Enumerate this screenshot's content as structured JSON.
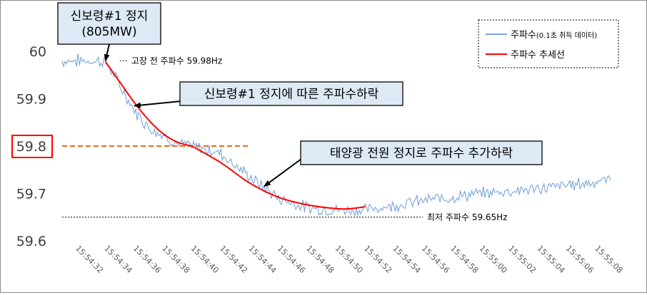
{
  "chart_data": {
    "type": "line",
    "title": "",
    "xlabel": "",
    "ylabel": "",
    "ylim": [
      59.6,
      60.0
    ],
    "yticks": [
      "60",
      "59.9",
      "59.8",
      "59.7",
      "59.6"
    ],
    "highlighted_ytick": "59.8",
    "x_tick_labels": [
      "15:54:32",
      "15:54:34",
      "15:54:36",
      "15:54:38",
      "15:54:40",
      "15:54:42",
      "15:54:44",
      "15:54:46",
      "15:54:48",
      "15:54:50",
      "15:54:52",
      "15:54:54",
      "15:54:56",
      "15:54:58",
      "15:55:00",
      "15:55:02",
      "15:55:04",
      "15:55:06",
      "15:55:08"
    ],
    "legend": {
      "placement": "top-right",
      "entries": [
        {
          "label_main": "주파수",
          "label_sub": "(0.1초 취득 데이터)",
          "color": "#7aa6d8"
        },
        {
          "label_main": "주파수 추세선",
          "label_sub": "",
          "color": "#ff0000"
        }
      ]
    },
    "series": [
      {
        "name": "주파수(0.1초 취득 데이터)",
        "color": "#7aa6d8",
        "sampling_seconds": 0.1,
        "noisy": true,
        "anchor_points": [
          {
            "x": "15:54:31",
            "y": 59.98
          },
          {
            "x": "15:54:34",
            "y": 59.98
          },
          {
            "x": "15:54:34.1",
            "y": 59.975
          },
          {
            "x": "15:54:36",
            "y": 59.875
          },
          {
            "x": "15:54:37",
            "y": 59.84
          },
          {
            "x": "15:54:39",
            "y": 59.805
          },
          {
            "x": "15:54:40",
            "y": 59.8
          },
          {
            "x": "15:54:42",
            "y": 59.785
          },
          {
            "x": "15:54:44",
            "y": 59.735
          },
          {
            "x": "15:54:46",
            "y": 59.69
          },
          {
            "x": "15:54:48",
            "y": 59.67
          },
          {
            "x": "15:54:50",
            "y": 59.665
          },
          {
            "x": "15:54:52",
            "y": 59.665
          },
          {
            "x": "15:54:54",
            "y": 59.675
          },
          {
            "x": "15:54:56",
            "y": 59.685
          },
          {
            "x": "15:55:00",
            "y": 59.7
          },
          {
            "x": "15:55:04",
            "y": 59.71
          },
          {
            "x": "15:55:08",
            "y": 59.725
          },
          {
            "x": "15:55:09",
            "y": 59.73
          }
        ]
      },
      {
        "name": "주파수 추세선",
        "color": "#ff0000",
        "segments": [
          [
            {
              "x": "15:54:34",
              "y": 59.978
            },
            {
              "x": "15:54:35",
              "y": 59.935
            },
            {
              "x": "15:54:36",
              "y": 59.892
            },
            {
              "x": "15:54:37",
              "y": 59.855
            },
            {
              "x": "15:54:38",
              "y": 59.826
            },
            {
              "x": "15:54:39",
              "y": 59.808
            },
            {
              "x": "15:54:40",
              "y": 59.8
            }
          ],
          [
            {
              "x": "15:54:40",
              "y": 59.8
            },
            {
              "x": "15:54:42",
              "y": 59.765
            },
            {
              "x": "15:54:44",
              "y": 59.722
            },
            {
              "x": "15:54:46",
              "y": 59.692
            },
            {
              "x": "15:54:48",
              "y": 59.676
            },
            {
              "x": "15:54:50",
              "y": 59.668
            },
            {
              "x": "15:54:51",
              "y": 59.668
            },
            {
              "x": "15:54:52",
              "y": 59.672
            }
          ]
        ]
      }
    ],
    "reference_lines": [
      {
        "name": "59.8 기준선",
        "y": 59.8,
        "x_from": "15:54:31",
        "x_to": "15:54:44",
        "color": "#e07020",
        "style": "dashed"
      },
      {
        "name": "고장 전 주파수",
        "y": 59.98,
        "x_from": "15:54:35",
        "x_to": "15:54:35.5",
        "color": "#000000",
        "style": "dotted",
        "label": "고장 전 주파수 59.98Hz"
      },
      {
        "name": "최저 주파수",
        "y": 59.65,
        "x_from": "15:54:31",
        "x_to": "15:54:56",
        "color": "#000000",
        "style": "dotted",
        "label": "최저 주파수 59.65Hz"
      }
    ],
    "annotations": [
      {
        "id": "trip",
        "lines": [
          "신보령#1 정지",
          "(805MW)"
        ],
        "box_fill": "#dde9f5",
        "arrow_to": {
          "x": "15:54:34",
          "y": 59.98
        }
      },
      {
        "id": "fall1",
        "lines": [
          "신보령#1 정지에 따른 주파수하락"
        ],
        "box_fill": "#dde9f5",
        "arrow_to": {
          "x": "15:54:36",
          "y": 59.885
        }
      },
      {
        "id": "fall2",
        "lines": [
          "태양광 전원 정지로 주파수 추가하락"
        ],
        "box_fill": "#dde9f5",
        "arrow_to": {
          "x": "15:54:45",
          "y": 59.715
        }
      }
    ]
  }
}
